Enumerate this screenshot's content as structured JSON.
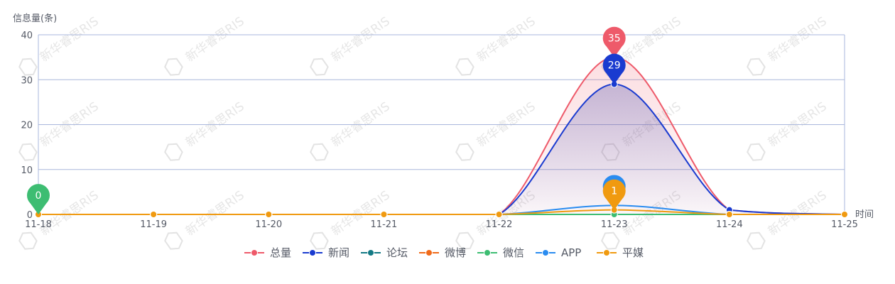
{
  "chart_data": {
    "type": "line",
    "ylabel": "信息量(条)",
    "xlabel": "时间",
    "categories": [
      "11-18",
      "11-19",
      "11-20",
      "11-21",
      "11-22",
      "11-23",
      "11-24",
      "11-25"
    ],
    "ylim": [
      0,
      40
    ],
    "yticks": [
      0,
      10,
      20,
      30,
      40
    ],
    "grid": true,
    "legend_position": "bottom",
    "series": [
      {
        "name": "总量",
        "color": "#ee5a6a",
        "values": [
          0,
          0,
          0,
          0,
          0,
          35,
          1,
          0
        ],
        "area": true
      },
      {
        "name": "新闻",
        "color": "#1a3bd0",
        "values": [
          0,
          0,
          0,
          0,
          0,
          29,
          1,
          0
        ],
        "area": true
      },
      {
        "name": "论坛",
        "color": "#137a85",
        "values": [
          0,
          0,
          0,
          0,
          0,
          0,
          0,
          0
        ]
      },
      {
        "name": "微博",
        "color": "#f06a1a",
        "values": [
          0,
          0,
          0,
          0,
          0,
          0,
          0,
          0
        ]
      },
      {
        "name": "微信",
        "color": "#3dbd72",
        "values": [
          0,
          0,
          0,
          0,
          0,
          0,
          0,
          0
        ]
      },
      {
        "name": "APP",
        "color": "#2a8cf0",
        "values": [
          0,
          0,
          0,
          0,
          0,
          2,
          0,
          0
        ]
      },
      {
        "name": "平媒",
        "color": "#f09a10",
        "values": [
          0,
          0,
          0,
          0,
          0,
          1,
          0,
          0
        ]
      }
    ],
    "pins": [
      {
        "series": "总量",
        "category": "11-23",
        "label": "35"
      },
      {
        "series": "新闻",
        "category": "11-23",
        "label": "29"
      },
      {
        "series": "APP",
        "category": "11-23",
        "label": ""
      },
      {
        "series": "平媒",
        "category": "11-23",
        "label": "1"
      },
      {
        "series": "微信",
        "category": "11-18",
        "label": "0"
      }
    ],
    "watermark": "新华睿思RIS"
  }
}
